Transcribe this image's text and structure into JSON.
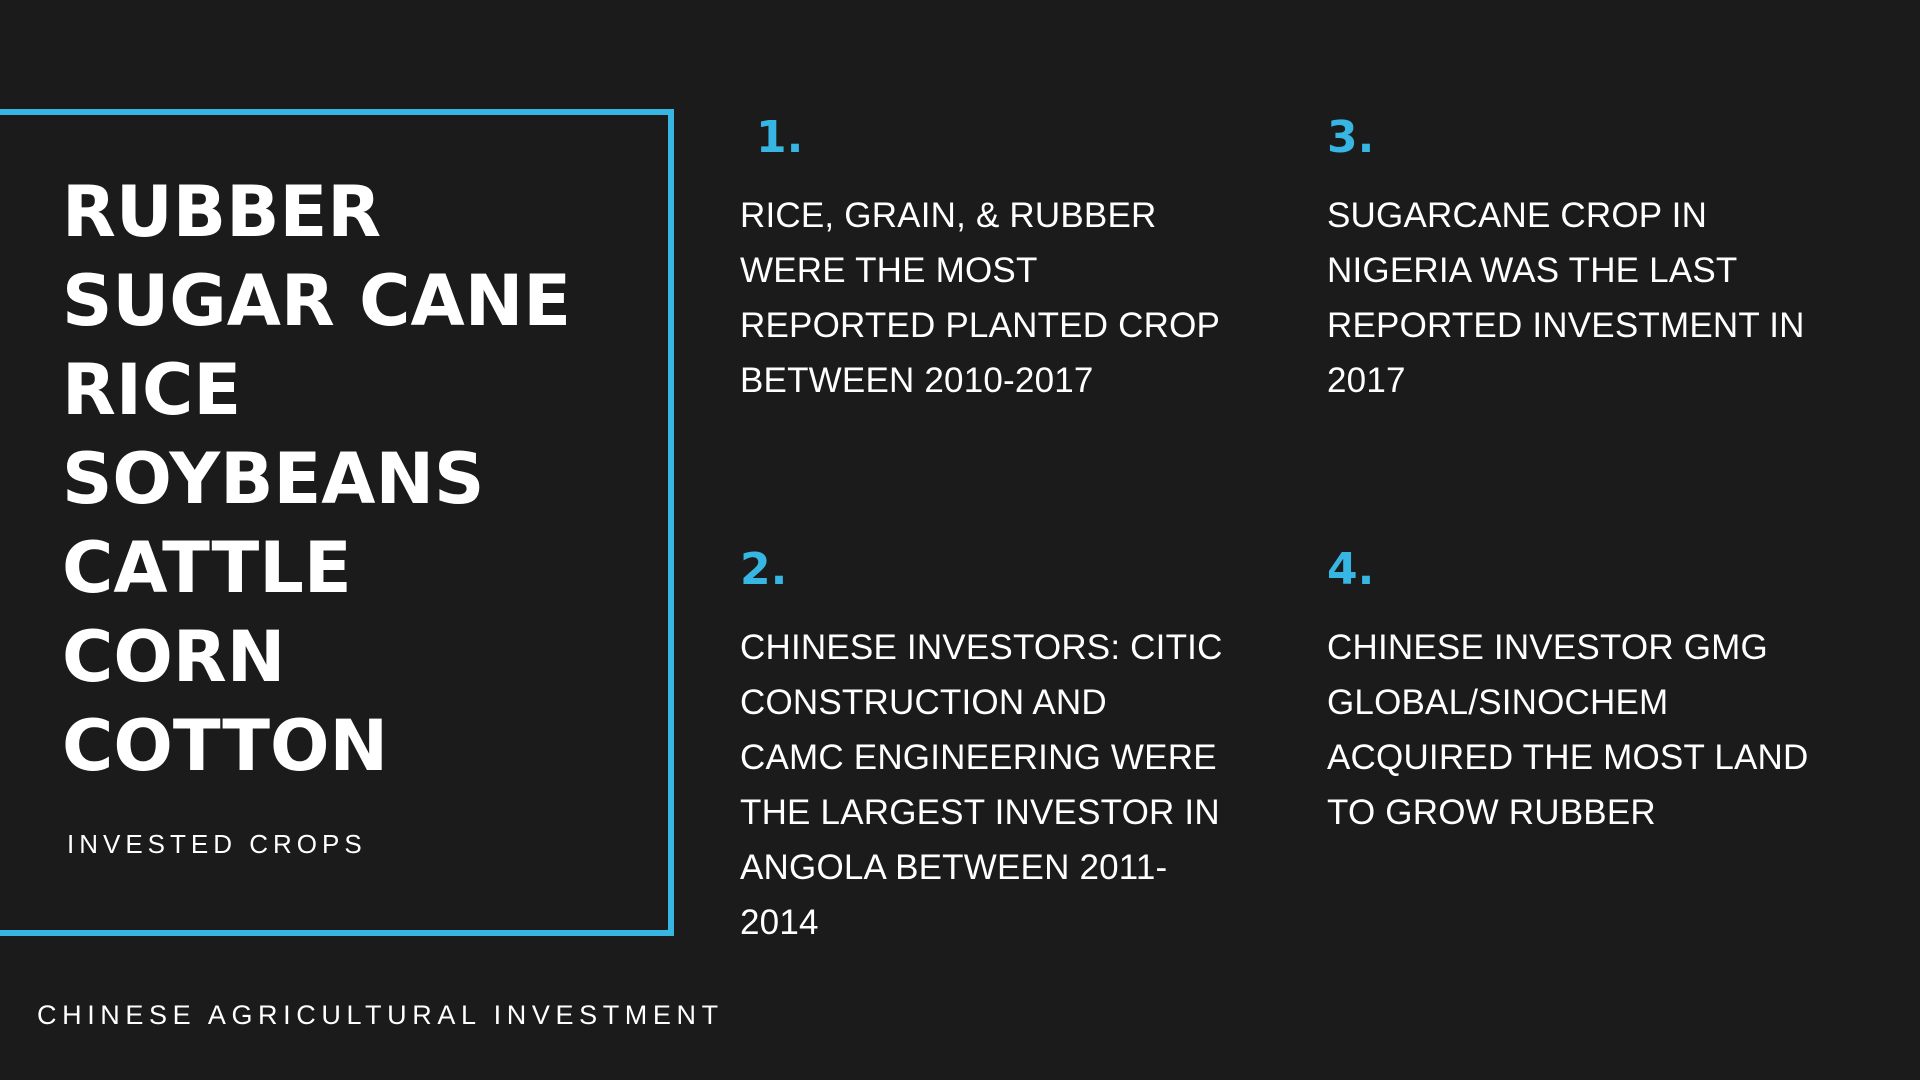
{
  "crops": {
    "items": [
      "RUBBER",
      "SUGAR CANE",
      "RICE",
      "SOYBEANS",
      "CATTLE",
      "CORN",
      "COTTON"
    ],
    "caption": "INVESTED CROPS"
  },
  "footer": {
    "title": "CHINESE AGRICULTURAL INVESTMENT"
  },
  "facts": [
    {
      "number": "1.",
      "lines": [
        "RICE, GRAIN, & RUBBER",
        "WERE THE MOST",
        "REPORTED PLANTED CROP",
        "BETWEEN 2010-2017"
      ]
    },
    {
      "number": "2.",
      "lines": [
        "CHINESE INVESTORS: CITIC",
        "CONSTRUCTION AND",
        "CAMC ENGINEERING WERE",
        "THE LARGEST INVESTOR IN",
        "ANGOLA BETWEEN 2011-",
        "2014"
      ]
    },
    {
      "number": "3.",
      "lines": [
        "SUGARCANE CROP IN",
        "NIGERIA WAS THE LAST",
        "REPORTED  INVESTMENT IN",
        "2017"
      ]
    },
    {
      "number": "4.",
      "lines": [
        "CHINESE INVESTOR GMG",
        "GLOBAL/SINOCHEM",
        "ACQUIRED THE MOST LAND",
        "TO GROW RUBBER"
      ]
    }
  ],
  "colors": {
    "background": "#1b1b1c",
    "accent": "#38b6e3",
    "text": "#ffffff"
  }
}
